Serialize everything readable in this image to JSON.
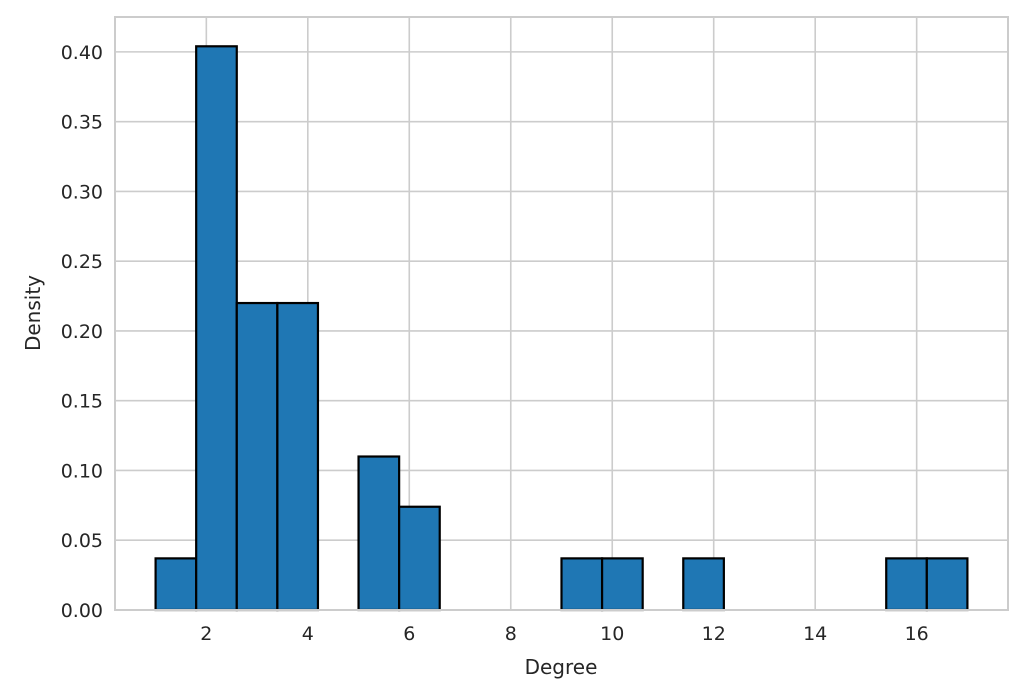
{
  "chart_data": {
    "type": "bar",
    "title": "",
    "xlabel": "Degree",
    "ylabel": "Density",
    "xlim": [
      0.2,
      17.8
    ],
    "ylim": [
      0,
      0.425
    ],
    "x_ticks": [
      2,
      4,
      6,
      8,
      10,
      12,
      14,
      16
    ],
    "y_ticks": [
      "0.00",
      "0.05",
      "0.10",
      "0.15",
      "0.20",
      "0.25",
      "0.30",
      "0.35",
      "0.40"
    ],
    "grid": true,
    "bin_width": 0.8,
    "bins": [
      {
        "x_start": 1.0,
        "x_end": 1.8,
        "value": 0.037
      },
      {
        "x_start": 1.8,
        "x_end": 2.6,
        "value": 0.404
      },
      {
        "x_start": 2.6,
        "x_end": 3.4,
        "value": 0.22
      },
      {
        "x_start": 3.4,
        "x_end": 4.2,
        "value": 0.22
      },
      {
        "x_start": 5.0,
        "x_end": 5.8,
        "value": 0.11
      },
      {
        "x_start": 5.8,
        "x_end": 6.6,
        "value": 0.074
      },
      {
        "x_start": 9.0,
        "x_end": 9.8,
        "value": 0.037
      },
      {
        "x_start": 9.8,
        "x_end": 10.6,
        "value": 0.037
      },
      {
        "x_start": 11.4,
        "x_end": 12.2,
        "value": 0.037
      },
      {
        "x_start": 15.4,
        "x_end": 16.2,
        "value": 0.037
      },
      {
        "x_start": 16.2,
        "x_end": 17.0,
        "value": 0.037
      }
    ],
    "colors": {
      "bar_fill": "#1f77b4",
      "bar_edge": "#000000",
      "grid": "#cccccc",
      "text": "#262626"
    }
  }
}
